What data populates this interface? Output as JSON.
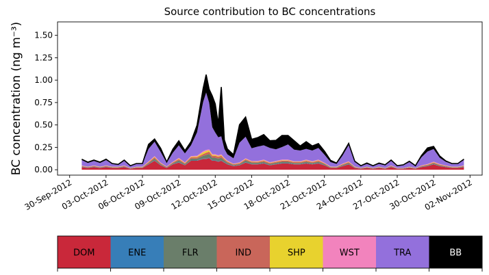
{
  "chart_data": {
    "type": "area",
    "title": "Source contribution to BC concentrations",
    "xlabel": "",
    "ylabel": "BC concentration (ng m⁻³)",
    "ylim": [
      -0.06,
      1.65
    ],
    "yticks": [
      0.0,
      0.25,
      0.5,
      0.75,
      1.0,
      1.25,
      1.5
    ],
    "ytick_labels": [
      "0.00",
      "0.25",
      "0.50",
      "0.75",
      "1.00",
      "1.25",
      "1.50"
    ],
    "xlim": [
      "2012-09-29",
      "2012-11-03"
    ],
    "xticks": [
      "2012-09-30",
      "2012-10-03",
      "2012-10-06",
      "2012-10-09",
      "2012-10-12",
      "2012-10-15",
      "2012-10-18",
      "2012-10-21",
      "2012-10-24",
      "2012-10-27",
      "2012-10-30",
      "2012-11-02"
    ],
    "xtick_labels": [
      "30-Sep-2012",
      "03-Oct-2012",
      "06-Oct-2012",
      "09-Oct-2012",
      "12-Oct-2012",
      "15-Oct-2012",
      "18-Oct-2012",
      "21-Oct-2012",
      "24-Oct-2012",
      "27-Oct-2012",
      "30-Oct-2012",
      "02-Nov-2012"
    ],
    "grid": false,
    "x": [
      "2012-10-01 00:00",
      "2012-10-01 12:00",
      "2012-10-02 00:00",
      "2012-10-02 12:00",
      "2012-10-03 00:00",
      "2012-10-03 12:00",
      "2012-10-04 00:00",
      "2012-10-04 12:00",
      "2012-10-05 00:00",
      "2012-10-05 12:00",
      "2012-10-06 00:00",
      "2012-10-06 12:00",
      "2012-10-07 00:00",
      "2012-10-07 12:00",
      "2012-10-08 00:00",
      "2012-10-08 12:00",
      "2012-10-09 00:00",
      "2012-10-09 12:00",
      "2012-10-10 00:00",
      "2012-10-10 12:00",
      "2012-10-11 00:00",
      "2012-10-11 06:00",
      "2012-10-11 12:00",
      "2012-10-11 18:00",
      "2012-10-12 00:00",
      "2012-10-12 06:00",
      "2012-10-12 12:00",
      "2012-10-12 18:00",
      "2012-10-13 00:00",
      "2012-10-13 12:00",
      "2012-10-14 00:00",
      "2012-10-14 12:00",
      "2012-10-15 00:00",
      "2012-10-15 12:00",
      "2012-10-16 00:00",
      "2012-10-16 12:00",
      "2012-10-17 00:00",
      "2012-10-17 12:00",
      "2012-10-18 00:00",
      "2012-10-18 12:00",
      "2012-10-19 00:00",
      "2012-10-19 12:00",
      "2012-10-20 00:00",
      "2012-10-20 12:00",
      "2012-10-21 00:00",
      "2012-10-21 12:00",
      "2012-10-22 00:00",
      "2012-10-22 12:00",
      "2012-10-23 00:00",
      "2012-10-23 12:00",
      "2012-10-24 00:00",
      "2012-10-24 12:00",
      "2012-10-25 00:00",
      "2012-10-25 12:00",
      "2012-10-26 00:00",
      "2012-10-26 12:00",
      "2012-10-27 00:00",
      "2012-10-27 12:00",
      "2012-10-28 00:00",
      "2012-10-28 12:00",
      "2012-10-29 00:00",
      "2012-10-29 12:00",
      "2012-10-30 00:00",
      "2012-10-30 12:00",
      "2012-10-31 00:00",
      "2012-10-31 12:00",
      "2012-11-01 00:00",
      "2012-11-01 12:00"
    ],
    "series": [
      {
        "name": "DOM",
        "color": "#c9283a",
        "values": [
          0.03,
          0.02,
          0.03,
          0.02,
          0.03,
          0.02,
          0.02,
          0.03,
          0.01,
          0.02,
          0.02,
          0.06,
          0.1,
          0.05,
          0.02,
          0.06,
          0.08,
          0.05,
          0.1,
          0.1,
          0.12,
          0.12,
          0.13,
          0.1,
          0.1,
          0.09,
          0.1,
          0.08,
          0.06,
          0.04,
          0.05,
          0.08,
          0.06,
          0.06,
          0.07,
          0.05,
          0.06,
          0.07,
          0.07,
          0.06,
          0.06,
          0.07,
          0.06,
          0.07,
          0.05,
          0.02,
          0.02,
          0.04,
          0.06,
          0.02,
          0.01,
          0.02,
          0.01,
          0.02,
          0.01,
          0.03,
          0.01,
          0.01,
          0.02,
          0.01,
          0.03,
          0.04,
          0.06,
          0.04,
          0.03,
          0.02,
          0.02,
          0.03
        ]
      },
      {
        "name": "ENE",
        "color": "#377eb8",
        "values": [
          0.002,
          0.002,
          0.002,
          0.002,
          0.002,
          0.002,
          0.002,
          0.002,
          0.001,
          0.002,
          0.002,
          0.003,
          0.004,
          0.003,
          0.002,
          0.003,
          0.004,
          0.003,
          0.004,
          0.004,
          0.005,
          0.005,
          0.006,
          0.005,
          0.005,
          0.005,
          0.005,
          0.004,
          0.004,
          0.003,
          0.003,
          0.004,
          0.004,
          0.003,
          0.004,
          0.003,
          0.003,
          0.004,
          0.004,
          0.003,
          0.003,
          0.004,
          0.003,
          0.004,
          0.003,
          0.002,
          0.002,
          0.003,
          0.003,
          0.002,
          0.001,
          0.002,
          0.001,
          0.002,
          0.001,
          0.002,
          0.001,
          0.001,
          0.002,
          0.001,
          0.002,
          0.002,
          0.003,
          0.002,
          0.002,
          0.002,
          0.002,
          0.002
        ]
      },
      {
        "name": "FLR",
        "color": "#6a7e6a",
        "values": [
          0.005,
          0.004,
          0.005,
          0.004,
          0.005,
          0.004,
          0.004,
          0.005,
          0.003,
          0.004,
          0.004,
          0.01,
          0.02,
          0.01,
          0.005,
          0.01,
          0.02,
          0.01,
          0.02,
          0.02,
          0.03,
          0.04,
          0.04,
          0.03,
          0.03,
          0.03,
          0.03,
          0.02,
          0.015,
          0.01,
          0.01,
          0.02,
          0.015,
          0.015,
          0.015,
          0.012,
          0.015,
          0.015,
          0.015,
          0.012,
          0.012,
          0.015,
          0.012,
          0.015,
          0.01,
          0.005,
          0.004,
          0.01,
          0.012,
          0.005,
          0.003,
          0.004,
          0.003,
          0.004,
          0.003,
          0.006,
          0.003,
          0.003,
          0.004,
          0.003,
          0.006,
          0.008,
          0.01,
          0.008,
          0.006,
          0.004,
          0.004,
          0.006
        ]
      },
      {
        "name": "IND",
        "color": "#d16552",
        "values": [
          0.005,
          0.004,
          0.005,
          0.004,
          0.005,
          0.004,
          0.004,
          0.005,
          0.003,
          0.004,
          0.004,
          0.01,
          0.015,
          0.008,
          0.005,
          0.008,
          0.015,
          0.01,
          0.015,
          0.015,
          0.02,
          0.025,
          0.025,
          0.02,
          0.02,
          0.02,
          0.02,
          0.015,
          0.012,
          0.008,
          0.01,
          0.012,
          0.01,
          0.01,
          0.012,
          0.01,
          0.01,
          0.012,
          0.012,
          0.01,
          0.01,
          0.012,
          0.01,
          0.012,
          0.008,
          0.004,
          0.004,
          0.008,
          0.01,
          0.004,
          0.003,
          0.004,
          0.003,
          0.004,
          0.003,
          0.005,
          0.003,
          0.003,
          0.004,
          0.003,
          0.005,
          0.006,
          0.008,
          0.006,
          0.005,
          0.004,
          0.004,
          0.005
        ]
      },
      {
        "name": "SHP",
        "color": "#e9d22e",
        "values": [
          0.002,
          0.002,
          0.002,
          0.002,
          0.002,
          0.002,
          0.002,
          0.002,
          0.001,
          0.002,
          0.002,
          0.004,
          0.006,
          0.003,
          0.002,
          0.003,
          0.006,
          0.004,
          0.006,
          0.008,
          0.02,
          0.02,
          0.015,
          0.01,
          0.01,
          0.008,
          0.008,
          0.006,
          0.005,
          0.003,
          0.004,
          0.005,
          0.004,
          0.004,
          0.005,
          0.004,
          0.004,
          0.005,
          0.005,
          0.004,
          0.004,
          0.005,
          0.004,
          0.005,
          0.003,
          0.002,
          0.002,
          0.003,
          0.004,
          0.002,
          0.001,
          0.002,
          0.001,
          0.002,
          0.001,
          0.002,
          0.001,
          0.001,
          0.002,
          0.001,
          0.002,
          0.003,
          0.004,
          0.003,
          0.002,
          0.002,
          0.002,
          0.002
        ]
      },
      {
        "name": "WST",
        "color": "#f082bd",
        "values": [
          0.004,
          0.003,
          0.004,
          0.003,
          0.004,
          0.003,
          0.003,
          0.004,
          0.002,
          0.003,
          0.003,
          0.006,
          0.008,
          0.005,
          0.003,
          0.005,
          0.008,
          0.006,
          0.008,
          0.01,
          0.012,
          0.012,
          0.012,
          0.01,
          0.01,
          0.01,
          0.01,
          0.008,
          0.006,
          0.004,
          0.005,
          0.007,
          0.006,
          0.006,
          0.007,
          0.005,
          0.006,
          0.007,
          0.007,
          0.006,
          0.006,
          0.007,
          0.006,
          0.007,
          0.005,
          0.003,
          0.003,
          0.005,
          0.006,
          0.003,
          0.002,
          0.003,
          0.002,
          0.003,
          0.002,
          0.004,
          0.002,
          0.002,
          0.003,
          0.002,
          0.004,
          0.005,
          0.006,
          0.005,
          0.004,
          0.003,
          0.003,
          0.004
        ]
      },
      {
        "name": "TRA",
        "color": "#9370dc",
        "values": [
          0.06,
          0.04,
          0.05,
          0.04,
          0.06,
          0.03,
          0.02,
          0.05,
          0.02,
          0.03,
          0.03,
          0.14,
          0.16,
          0.12,
          0.04,
          0.1,
          0.14,
          0.1,
          0.12,
          0.26,
          0.55,
          0.64,
          0.52,
          0.3,
          0.24,
          0.2,
          0.2,
          0.1,
          0.07,
          0.06,
          0.22,
          0.24,
          0.14,
          0.16,
          0.16,
          0.16,
          0.13,
          0.14,
          0.17,
          0.13,
          0.12,
          0.12,
          0.12,
          0.13,
          0.09,
          0.05,
          0.03,
          0.09,
          0.18,
          0.05,
          0.02,
          0.03,
          0.02,
          0.03,
          0.03,
          0.05,
          0.02,
          0.03,
          0.05,
          0.02,
          0.09,
          0.14,
          0.14,
          0.07,
          0.04,
          0.03,
          0.03,
          0.06
        ]
      },
      {
        "name": "BB",
        "color": "#000000",
        "values": [
          0.01,
          0.01,
          0.01,
          0.01,
          0.01,
          0.005,
          0.005,
          0.01,
          0.005,
          0.005,
          0.005,
          0.05,
          0.03,
          0.04,
          0.01,
          0.04,
          0.05,
          0.03,
          0.04,
          0.08,
          0.15,
          0.2,
          0.15,
          0.35,
          0.32,
          0.15,
          0.55,
          0.1,
          0.06,
          0.04,
          0.2,
          0.22,
          0.1,
          0.1,
          0.12,
          0.08,
          0.1,
          0.13,
          0.1,
          0.1,
          0.05,
          0.08,
          0.05,
          0.05,
          0.04,
          0.02,
          0.01,
          0.02,
          0.02,
          0.01,
          0.005,
          0.01,
          0.005,
          0.01,
          0.005,
          0.01,
          0.005,
          0.005,
          0.01,
          0.005,
          0.02,
          0.04,
          0.03,
          0.02,
          0.01,
          0.005,
          0.005,
          0.01
        ]
      }
    ],
    "total_line_color": "#000000"
  },
  "legend": {
    "items": [
      {
        "label": "DOM",
        "color": "#c9283a",
        "text_color": "#000000"
      },
      {
        "label": "ENE",
        "color": "#377eb8",
        "text_color": "#000000"
      },
      {
        "label": "FLR",
        "color": "#6a7e6a",
        "text_color": "#000000"
      },
      {
        "label": "IND",
        "color": "#c9665a",
        "text_color": "#000000"
      },
      {
        "label": "SHP",
        "color": "#e8d22e",
        "text_color": "#000000"
      },
      {
        "label": "WST",
        "color": "#f283bd",
        "text_color": "#000000"
      },
      {
        "label": "TRA",
        "color": "#9370dc",
        "text_color": "#000000"
      },
      {
        "label": "BB",
        "color": "#000000",
        "text_color": "#ffffff"
      }
    ]
  }
}
